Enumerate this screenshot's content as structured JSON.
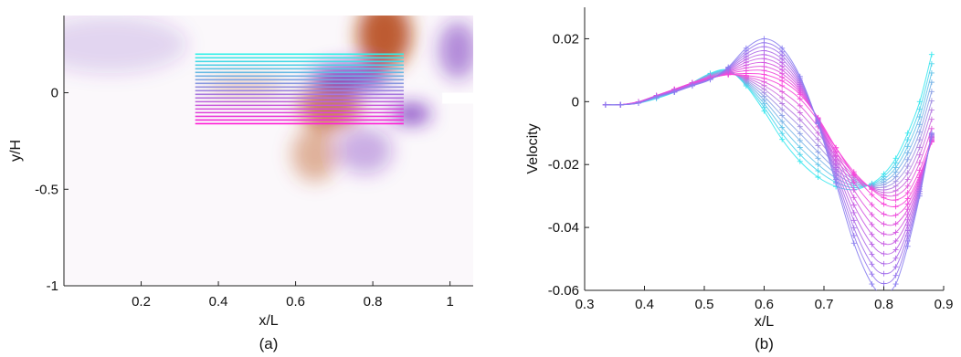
{
  "chart_data": [
    {
      "panel": "(a)",
      "type": "heatmap",
      "xlabel": "x/L",
      "ylabel": "y/H",
      "xlim": [
        0.0,
        1.06
      ],
      "ylim": [
        -1.0,
        0.4
      ],
      "xticks": [
        "0.2",
        "0.4",
        "0.6",
        "0.8",
        "1"
      ],
      "xtick_values": [
        0.2,
        0.4,
        0.6,
        0.8,
        1.0
      ],
      "yticks": [
        "0",
        "-0.5",
        "-1"
      ],
      "ytick_values": [
        0,
        -0.5,
        -1
      ],
      "colormap": "purple-white-red (diverging)",
      "features": [
        {
          "kind": "positive",
          "cx": 0.83,
          "cy": 0.3,
          "rx": 0.07,
          "ry": 0.18,
          "strength": 1.0
        },
        {
          "kind": "positive",
          "cx": 0.69,
          "cy": -0.07,
          "rx": 0.08,
          "ry": 0.12,
          "strength": 0.8
        },
        {
          "kind": "positive",
          "cx": 0.65,
          "cy": -0.32,
          "rx": 0.06,
          "ry": 0.14,
          "strength": 0.45
        },
        {
          "kind": "positive",
          "cx": 0.47,
          "cy": 0.03,
          "rx": 0.1,
          "ry": 0.04,
          "strength": 0.35
        },
        {
          "kind": "negative",
          "cx": 0.74,
          "cy": 0.08,
          "rx": 0.1,
          "ry": 0.07,
          "strength": 0.95
        },
        {
          "kind": "negative",
          "cx": 0.9,
          "cy": -0.11,
          "rx": 0.05,
          "ry": 0.05,
          "strength": 1.0
        },
        {
          "kind": "negative",
          "cx": 0.78,
          "cy": -0.3,
          "rx": 0.07,
          "ry": 0.12,
          "strength": 0.4
        },
        {
          "kind": "negative",
          "cx": 1.02,
          "cy": 0.22,
          "rx": 0.05,
          "ry": 0.15,
          "strength": 0.6
        },
        {
          "kind": "negative",
          "cx": 0.12,
          "cy": 0.25,
          "rx": 0.2,
          "ry": 0.15,
          "strength": 0.2
        }
      ],
      "step": {
        "x": 0.98,
        "y": 0.0
      },
      "overlay_lines": {
        "x_start": 0.34,
        "x_end": 0.88,
        "y_top": 0.2,
        "y_bottom": -0.16,
        "count": 20,
        "color_top": "#2ff0e8",
        "color_bottom": "#ff1fd6"
      }
    },
    {
      "panel": "(b)",
      "type": "line",
      "xlabel": "x/L",
      "ylabel": "Velocity",
      "xlim": [
        0.3,
        0.9
      ],
      "ylim": [
        -0.06,
        0.03
      ],
      "xticks": [
        "0.3",
        "0.4",
        "0.5",
        "0.6",
        "0.7",
        "0.8",
        "0.9"
      ],
      "xtick_values": [
        0.3,
        0.4,
        0.5,
        0.6,
        0.7,
        0.8,
        0.9
      ],
      "yticks": [
        "0.02",
        "0",
        "-0.02",
        "-0.04",
        "-0.06"
      ],
      "ytick_values": [
        0.02,
        0,
        -0.02,
        -0.04,
        -0.06
      ],
      "marker": "plus",
      "x": [
        0.335,
        0.36,
        0.39,
        0.42,
        0.45,
        0.48,
        0.51,
        0.54,
        0.57,
        0.6,
        0.63,
        0.66,
        0.69,
        0.72,
        0.75,
        0.78,
        0.8,
        0.82,
        0.84,
        0.86,
        0.88
      ],
      "series": [
        {
          "color": "#38e8ee",
          "values": [
            -0.001,
            -0.001,
            -0.0005,
            0.001,
            0.003,
            0.006,
            0.009,
            0.01,
            0.005,
            -0.003,
            -0.012,
            -0.019,
            -0.024,
            -0.027,
            -0.028,
            -0.026,
            -0.023,
            -0.018,
            -0.01,
            0.0,
            0.015
          ]
        },
        {
          "color": "#8a7ef0",
          "values": [
            -0.001,
            -0.001,
            -0.0005,
            0.0015,
            0.003,
            0.005,
            0.007,
            0.011,
            0.017,
            0.02,
            0.017,
            0.008,
            -0.007,
            -0.026,
            -0.045,
            -0.058,
            -0.061,
            -0.058,
            -0.046,
            -0.03,
            -0.01
          ]
        },
        {
          "color": "#ff3fd8",
          "values": [
            -0.001,
            -0.001,
            0.0,
            0.002,
            0.004,
            0.006,
            0.0075,
            0.0085,
            0.0085,
            0.008,
            0.006,
            0.002,
            -0.005,
            -0.014,
            -0.022,
            -0.028,
            -0.031,
            -0.032,
            -0.03,
            -0.023,
            -0.013
          ]
        }
      ],
      "series_count": 20
    }
  ],
  "labels": {
    "a": "(a)",
    "b": "(b)"
  }
}
